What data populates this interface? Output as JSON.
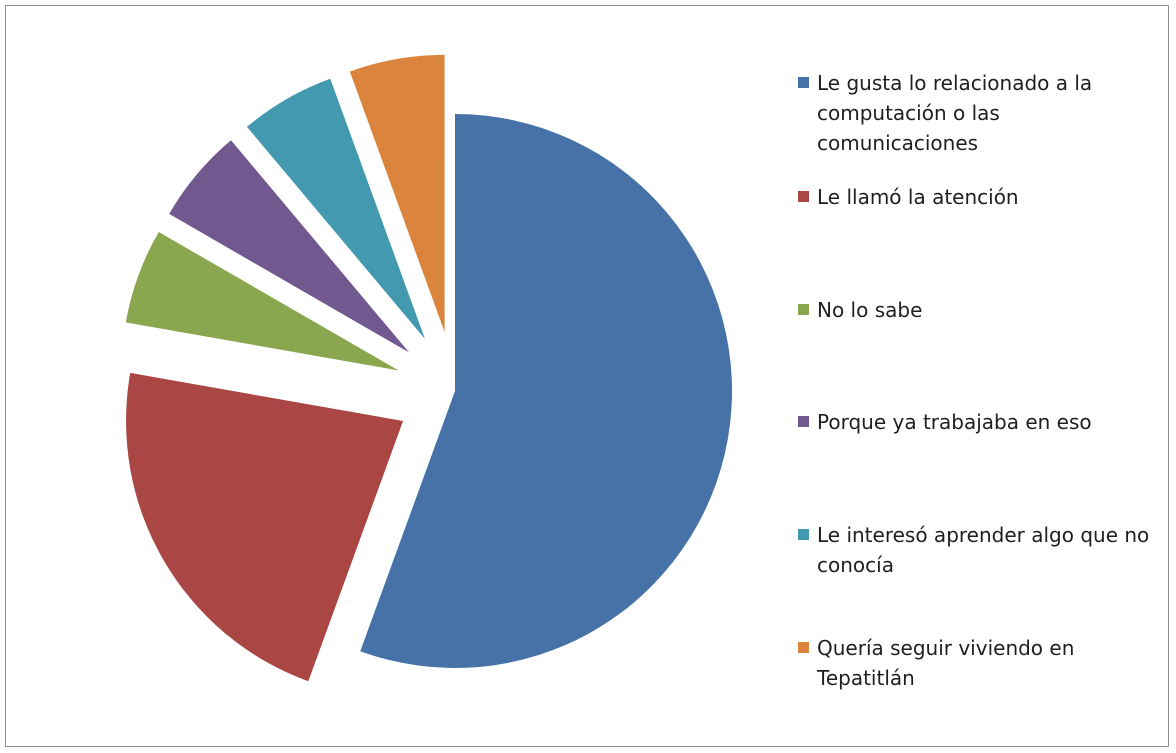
{
  "chart_data": {
    "type": "pie",
    "title": "",
    "legend_position": "right",
    "exploded": true,
    "start_angle_deg": 0,
    "direction": "clockwise",
    "categories": [
      "Le gusta lo relacionado a la computación o las comunicaciones",
      "Le llamó la atención",
      "No lo sabe",
      "Porque ya trabajaba en eso",
      "Le interesó aprender algo que no conocía",
      "Quería seguir viviendo en Tepatitlán"
    ],
    "values": [
      10,
      4,
      1,
      1,
      1,
      1
    ],
    "legend_labels": [
      "Le gusta lo relacionado a la\ncomputación o las\ncomunicaciones",
      "Le llamó la atención",
      "No lo sabe",
      "Porque ya trabajaba en eso",
      "Le interesó aprender algo que no\nconocía",
      "Quería seguir viviendo en\nTepatitlán"
    ],
    "colors": [
      "#4672a8",
      "#aa4644",
      "#8aa64e",
      "#71588f",
      "#4299b0",
      "#db843d"
    ]
  }
}
